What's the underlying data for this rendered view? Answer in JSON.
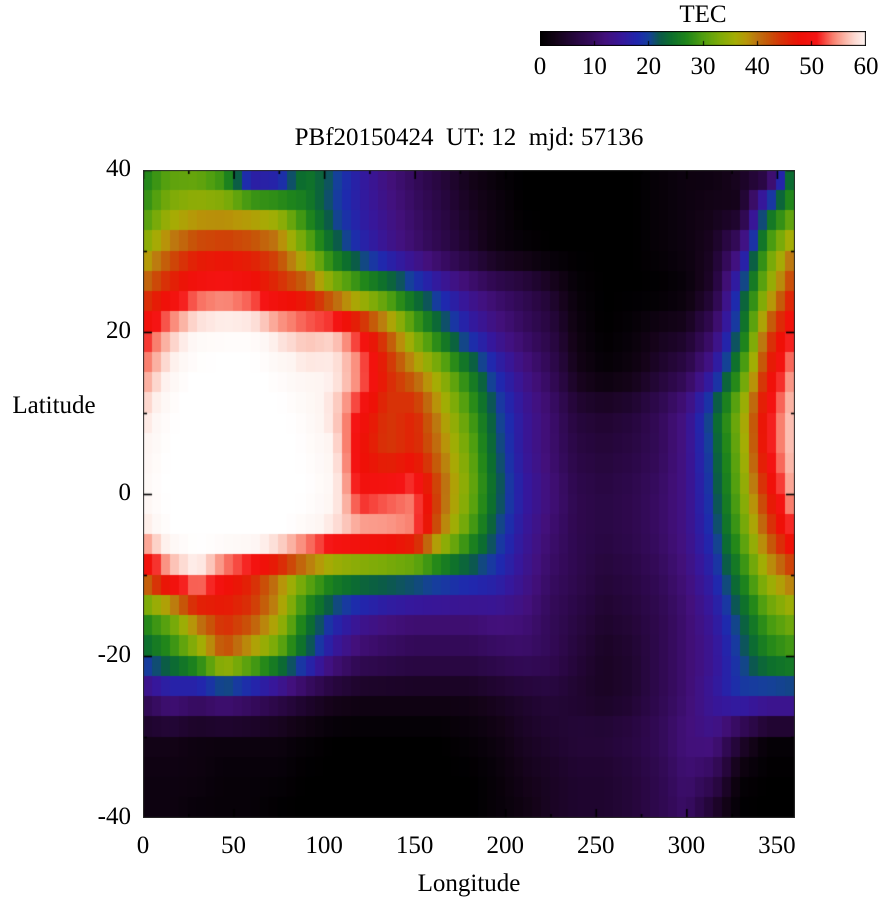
{
  "title": "PBf20150424  UT: 12  mjd: 57136",
  "colorbar": {
    "title": "TEC",
    "min": 0,
    "max": 60,
    "tick_values": [
      0,
      10,
      20,
      30,
      40,
      50,
      60
    ],
    "palette_stops": [
      [
        0,
        "#000000"
      ],
      [
        3,
        "#140318"
      ],
      [
        6,
        "#25063a"
      ],
      [
        9,
        "#330a58"
      ],
      [
        12,
        "#43107c"
      ],
      [
        15,
        "#36179b"
      ],
      [
        18,
        "#1f28ae"
      ],
      [
        20,
        "#15409a"
      ],
      [
        22,
        "#0b5a4a"
      ],
      [
        24,
        "#0c6e2e"
      ],
      [
        27,
        "#20861a"
      ],
      [
        30,
        "#509f10"
      ],
      [
        33,
        "#7dab08"
      ],
      [
        36,
        "#a4ad04"
      ],
      [
        38,
        "#b79708"
      ],
      [
        40,
        "#bd7410"
      ],
      [
        42,
        "#c65708"
      ],
      [
        44,
        "#d43807"
      ],
      [
        46,
        "#e22106"
      ],
      [
        48,
        "#ef1007"
      ],
      [
        51,
        "#f51414"
      ],
      [
        54,
        "#f97f6e"
      ],
      [
        56,
        "#fbb1a2"
      ],
      [
        58,
        "#fdd9d1"
      ],
      [
        60,
        "#fef5f2"
      ],
      [
        64,
        "#ffffff"
      ]
    ]
  },
  "axes": {
    "x": {
      "label": "Longitude",
      "min": 0,
      "max": 360,
      "major_ticks": [
        0,
        50,
        100,
        150,
        200,
        250,
        300,
        350
      ],
      "minor_step": 25
    },
    "y": {
      "label": "Latitude",
      "min": -40,
      "max": 40,
      "major_ticks": [
        40,
        20,
        0,
        -20,
        -40
      ],
      "minor_step": 10
    }
  },
  "chart_data": {
    "type": "heatmap",
    "title": "PBf20150424  UT: 12  mjd: 57136",
    "colorbar_title": "TEC",
    "xlabel": "Longitude",
    "ylabel": "Latitude",
    "xlim": [
      0,
      360
    ],
    "ylim": [
      -40,
      40
    ],
    "color_range": [
      0,
      60
    ],
    "grid_lons": [
      0,
      15,
      30,
      45,
      60,
      75,
      90,
      105,
      120,
      135,
      150,
      165,
      180,
      195,
      210,
      225,
      240,
      255,
      270,
      285,
      300,
      315,
      330,
      345,
      360
    ],
    "grid_lats": [
      40,
      35,
      30,
      25,
      20,
      15,
      10,
      5,
      0,
      -5,
      -10,
      -15,
      -20,
      -25,
      -30,
      -35,
      -40
    ],
    "tec_values": [
      [
        26,
        30,
        30,
        26,
        10,
        12,
        25,
        21,
        16,
        12,
        9,
        6,
        3,
        1,
        0,
        0,
        0,
        0,
        0,
        1,
        2,
        2,
        4,
        3,
        26
      ],
      [
        28,
        34,
        36,
        36,
        35,
        33,
        26,
        20,
        16,
        13,
        10,
        7,
        4,
        2,
        0,
        0,
        0,
        0,
        0,
        1,
        2,
        3,
        3,
        22,
        30
      ],
      [
        35,
        41,
        45,
        46,
        45,
        42,
        33,
        24,
        18,
        14,
        11,
        8,
        5,
        2,
        1,
        0,
        0,
        0,
        0,
        1,
        2,
        4,
        12,
        30,
        40
      ],
      [
        42,
        47,
        51,
        52,
        50,
        46,
        44,
        36,
        31,
        27,
        22,
        17,
        13,
        10,
        8,
        5,
        1,
        0,
        0,
        0,
        1,
        5,
        20,
        34,
        46
      ],
      [
        50,
        56,
        61,
        62,
        62,
        58,
        56,
        57,
        50,
        42,
        32,
        24,
        17,
        13,
        10,
        7,
        2,
        0,
        1,
        3,
        4,
        10,
        22,
        42,
        52
      ],
      [
        54,
        60,
        64,
        65,
        65,
        62,
        60,
        60,
        55,
        46,
        40,
        34,
        26,
        18,
        13,
        9,
        3,
        1,
        2,
        5,
        8,
        15,
        28,
        46,
        56
      ],
      [
        58,
        63,
        66,
        67,
        67,
        65,
        62,
        58,
        50,
        44,
        46,
        38,
        30,
        21,
        15,
        11,
        6,
        5,
        6,
        9,
        13,
        22,
        34,
        50,
        58
      ],
      [
        60,
        64,
        67,
        68,
        68,
        66,
        63,
        60,
        48,
        44,
        46,
        40,
        32,
        22,
        15,
        11,
        7,
        6,
        7,
        9,
        13,
        21,
        33,
        50,
        58
      ],
      [
        61,
        65,
        67,
        68,
        68,
        67,
        64,
        61,
        50,
        52,
        54,
        42,
        33,
        23,
        16,
        12,
        8,
        7,
        8,
        10,
        13,
        20,
        32,
        46,
        57
      ],
      [
        58,
        63,
        66,
        66,
        66,
        64,
        61,
        58,
        57,
        56,
        54,
        40,
        30,
        21,
        15,
        11,
        8,
        7,
        8,
        10,
        13,
        19,
        30,
        42,
        52
      ],
      [
        44,
        54,
        58,
        50,
        46,
        40,
        33,
        28,
        26,
        25,
        24,
        22,
        20,
        18,
        14,
        10,
        8,
        6,
        7,
        9,
        12,
        17,
        26,
        36,
        42
      ],
      [
        28,
        33,
        42,
        46,
        44,
        38,
        26,
        19,
        15,
        13,
        12,
        12,
        12,
        13,
        12,
        9,
        7,
        5,
        6,
        8,
        11,
        15,
        22,
        30,
        34
      ],
      [
        22,
        26,
        32,
        42,
        36,
        30,
        22,
        14,
        10,
        9,
        8,
        8,
        8,
        9,
        10,
        9,
        6,
        4,
        5,
        8,
        11,
        14,
        20,
        26,
        28
      ],
      [
        10,
        14,
        12,
        14,
        12,
        9,
        6,
        4,
        3,
        3,
        3,
        3,
        3,
        4,
        5,
        6,
        5,
        4,
        5,
        8,
        11,
        15,
        19,
        18,
        18
      ],
      [
        3,
        3,
        2,
        2,
        2,
        2,
        1,
        0,
        0,
        0,
        0,
        0,
        1,
        2,
        4,
        5,
        6,
        6,
        7,
        9,
        12,
        13,
        6,
        1,
        1
      ],
      [
        2,
        2,
        2,
        1,
        1,
        1,
        0,
        0,
        0,
        0,
        0,
        0,
        0,
        1,
        3,
        4,
        5,
        5,
        6,
        8,
        11,
        9,
        1,
        0,
        0
      ],
      [
        2,
        2,
        1,
        1,
        1,
        0,
        0,
        0,
        0,
        0,
        0,
        0,
        0,
        1,
        2,
        4,
        5,
        5,
        6,
        8,
        10,
        4,
        0,
        0,
        0
      ]
    ]
  }
}
